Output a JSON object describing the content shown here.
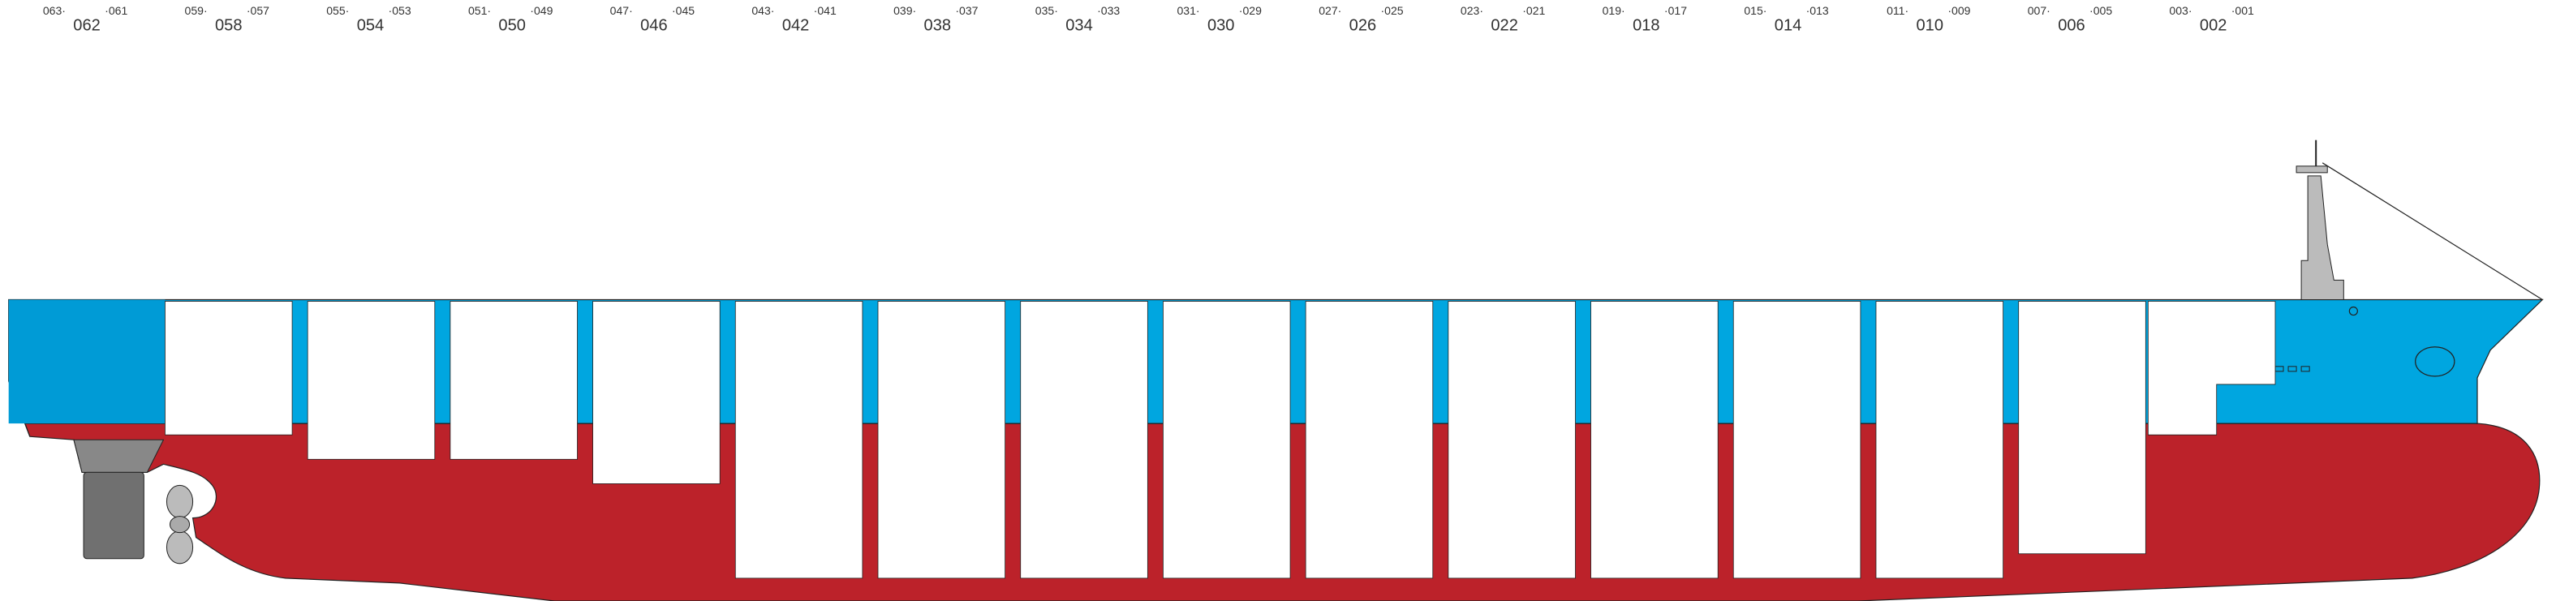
{
  "bays": [
    {
      "left": "063·",
      "center": "062",
      "right": "·061"
    },
    {
      "left": "059·",
      "center": "058",
      "right": "·057"
    },
    {
      "left": "055·",
      "center": "054",
      "right": "·053"
    },
    {
      "left": "051·",
      "center": "050",
      "right": "·049"
    },
    {
      "left": "047·",
      "center": "046",
      "right": "·045"
    },
    {
      "left": "043·",
      "center": "042",
      "right": "·041"
    },
    {
      "left": "039·",
      "center": "038",
      "right": "·037"
    },
    {
      "left": "035·",
      "center": "034",
      "right": "·033"
    },
    {
      "left": "031·",
      "center": "030",
      "right": "·029"
    },
    {
      "left": "027·",
      "center": "026",
      "right": "·025"
    },
    {
      "left": "023·",
      "center": "022",
      "right": "·021"
    },
    {
      "left": "019·",
      "center": "018",
      "right": "·017"
    },
    {
      "left": "015·",
      "center": "014",
      "right": "·013"
    },
    {
      "left": "011·",
      "center": "010",
      "right": "·009"
    },
    {
      "left": "007·",
      "center": "006",
      "right": "·005"
    },
    {
      "left": "003·",
      "center": "002",
      "right": "·001"
    }
  ]
}
